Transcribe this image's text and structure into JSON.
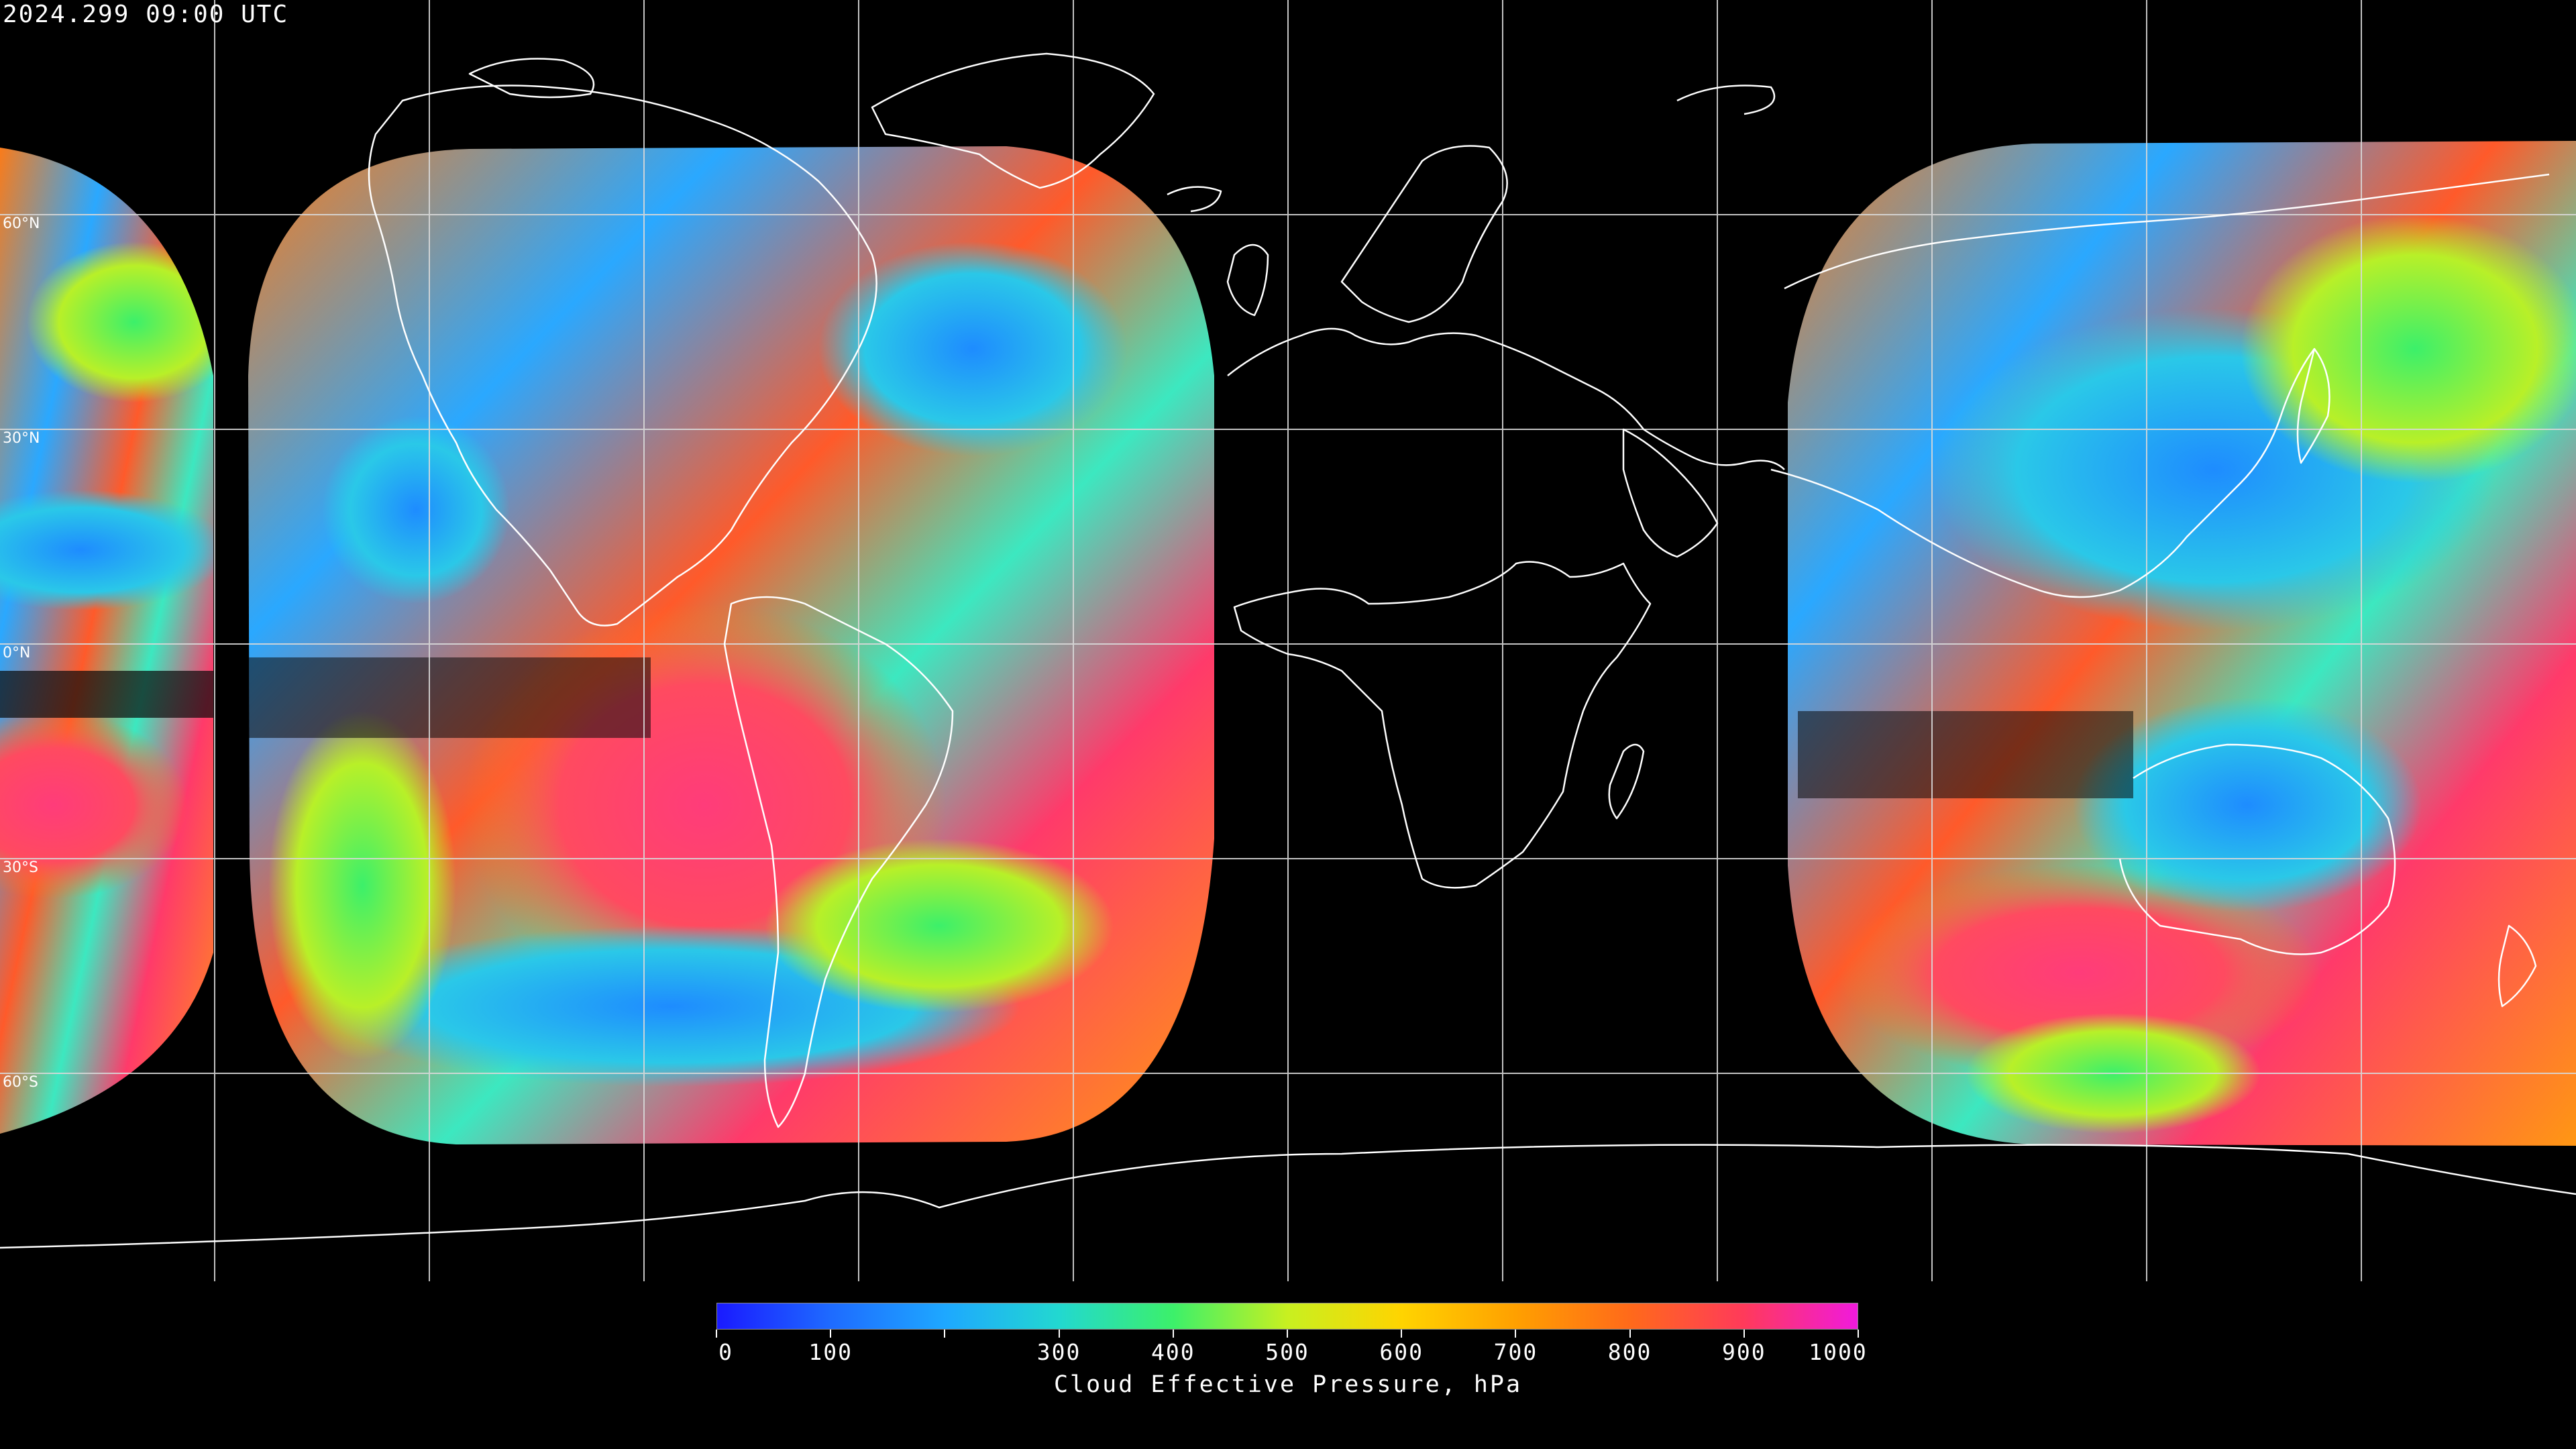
{
  "header": {
    "timestamp": "2024.299 09:00 UTC"
  },
  "map": {
    "projection": "equirectangular",
    "longitude_span": "global",
    "background_color": "#000000",
    "coastline_color": "#ffffff",
    "grid_color": "#d9d9d9",
    "latitude_labels": [
      "60°N",
      "30°N",
      "0°N",
      "30°S",
      "60°S"
    ],
    "satellite_coverage": [
      {
        "region": "Pacific (west edge)"
      },
      {
        "region": "Americas / Atlantic"
      },
      {
        "region": "Asia / Western Pacific / Australia"
      }
    ]
  },
  "colorbar": {
    "title": "Cloud Effective Pressure, hPa",
    "min": 0,
    "max": 1000,
    "tick_labels": [
      "0",
      "100",
      "300",
      "400",
      "500",
      "600",
      "700",
      "800",
      "900",
      "1000"
    ],
    "minor_ticks": [
      200
    ],
    "colors": [
      "#1a1aff",
      "#1e6bff",
      "#1ea8ff",
      "#22d8d0",
      "#3cf06a",
      "#c8f020",
      "#ffd400",
      "#ffa000",
      "#ff6a1a",
      "#ff3a5a",
      "#f01adc"
    ]
  }
}
